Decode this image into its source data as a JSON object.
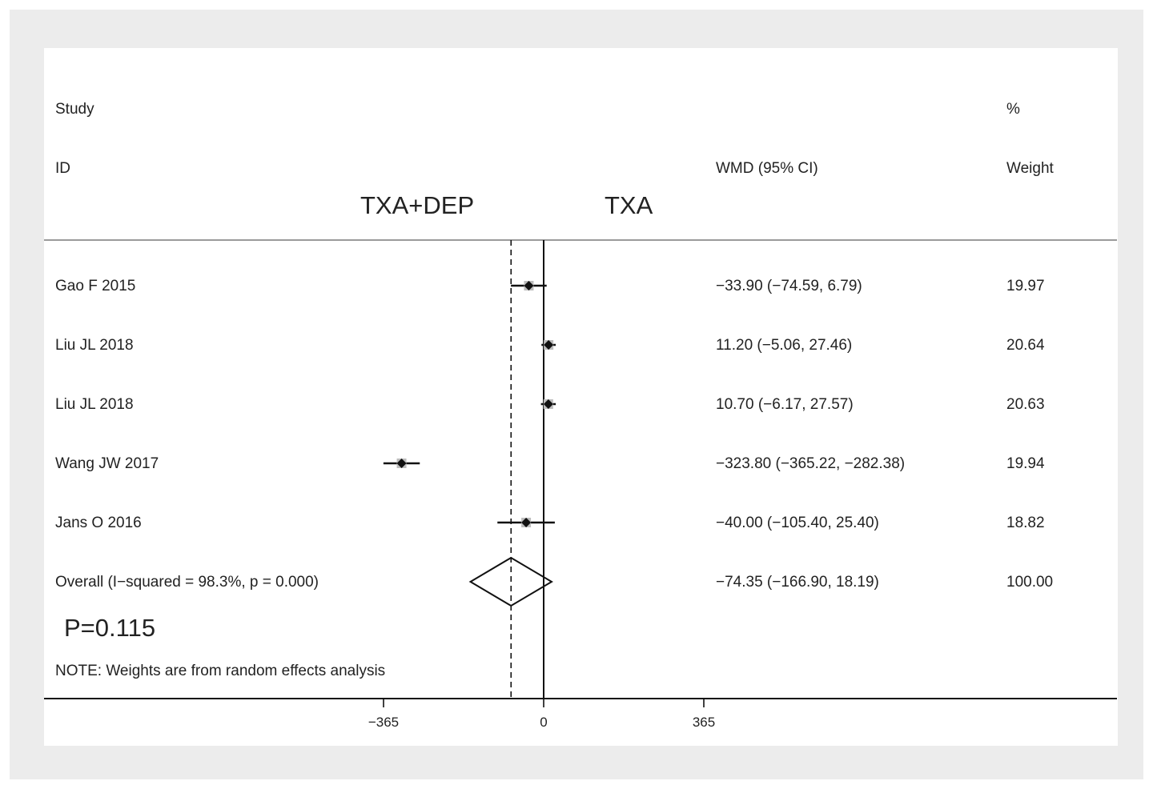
{
  "headers": {
    "study": "Study",
    "id": "ID",
    "effect": "WMD (95% CI)",
    "percent": "%",
    "weight": "Weight"
  },
  "favours": {
    "left": "TXA+DEP",
    "right": "TXA"
  },
  "p_value_text": "P=0.115",
  "note": "NOTE: Weights are from random effects analysis",
  "chart_data": {
    "type": "forest",
    "axis": {
      "ticks": [
        -365,
        0,
        365
      ],
      "tick_labels": [
        "−365",
        "0",
        "365"
      ],
      "range": [
        -365,
        365
      ]
    },
    "reference_line": 0,
    "overall_line": -74.35,
    "studies": [
      {
        "id": "Gao F 2015",
        "wmd": -33.9,
        "ci_low": -74.59,
        "ci_high": 6.79,
        "weight": 19.97,
        "ci_text": "−33.90 (−74.59, 6.79)",
        "weight_text": "19.97"
      },
      {
        "id": "Liu JL 2018",
        "wmd": 11.2,
        "ci_low": -5.06,
        "ci_high": 27.46,
        "weight": 20.64,
        "ci_text": "11.20 (−5.06, 27.46)",
        "weight_text": "20.64"
      },
      {
        "id": "Liu JL 2018",
        "wmd": 10.7,
        "ci_low": -6.17,
        "ci_high": 27.57,
        "weight": 20.63,
        "ci_text": "10.70 (−6.17, 27.57)",
        "weight_text": "20.63"
      },
      {
        "id": "Wang JW 2017",
        "wmd": -323.8,
        "ci_low": -365.22,
        "ci_high": -282.38,
        "weight": 19.94,
        "ci_text": "−323.80 (−365.22, −282.38)",
        "weight_text": "19.94"
      },
      {
        "id": "Jans O 2016",
        "wmd": -40.0,
        "ci_low": -105.4,
        "ci_high": 25.4,
        "weight": 18.82,
        "ci_text": "−40.00 (−105.40, 25.40)",
        "weight_text": "18.82"
      }
    ],
    "overall": {
      "label": "Overall  (I−squared = 98.3%, p = 0.000)",
      "wmd": -74.35,
      "ci_low": -166.9,
      "ci_high": 18.19,
      "weight": 100.0,
      "ci_text": "−74.35 (−166.90, 18.19)",
      "weight_text": "100.00"
    }
  }
}
